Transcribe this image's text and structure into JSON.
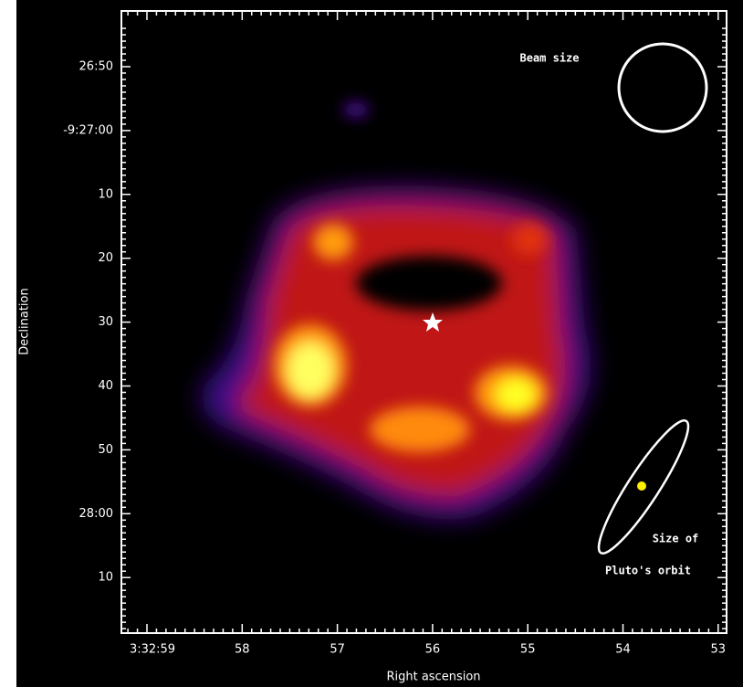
{
  "chart_data": {
    "type": "image",
    "xlabel": "Right ascension",
    "ylabel": "Declination",
    "xticks": [
      "3:32:59",
      "58",
      "57",
      "56",
      "55",
      "54",
      "53"
    ],
    "yticks": [
      "26:50",
      "-9:27:00",
      "10",
      "20",
      "30",
      "40",
      "50",
      "28:00",
      "10"
    ],
    "annotations": [
      "Beam size",
      "Size of",
      "Pluto's orbit"
    ]
  }
}
